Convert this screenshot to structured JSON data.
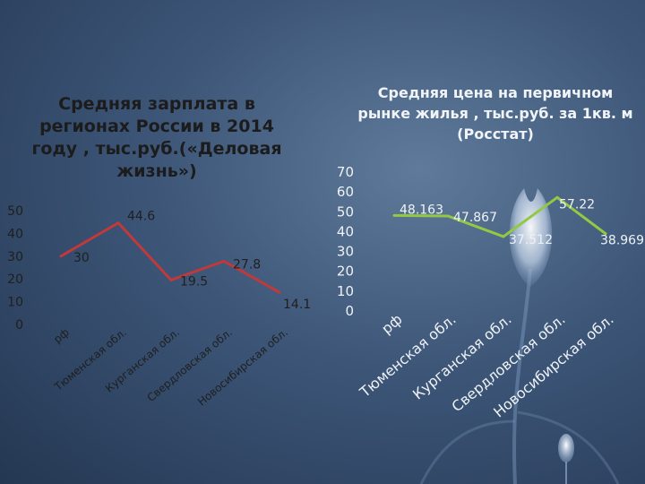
{
  "colors": {
    "left_line": "#c0393b",
    "right_line": "#93c842",
    "axis_text_left": "#1f1f1f",
    "axis_text_right": "#eef2f6"
  },
  "chart_data": [
    {
      "type": "line",
      "title": "Средняя зарплата в регионах России в 2014 году , тыс.руб.(«Деловая жизнь»)",
      "categories": [
        "рф",
        "Тюменская обл.",
        "Курганская обл.",
        "Свердловская обл.",
        "Новосибирская обл."
      ],
      "values": [
        30,
        44.6,
        19.5,
        27.8,
        14.1
      ],
      "data_labels": [
        "30",
        "44.6",
        "19.5",
        "27.8",
        "14.1"
      ],
      "y_ticks": [
        "0",
        "10",
        "20",
        "30",
        "40",
        "50"
      ],
      "ylim": [
        0,
        50
      ],
      "grid": false,
      "legend": "none"
    },
    {
      "type": "line",
      "title": "Средняя цена на первичном рынке жилья , тыс.руб. за 1кв. м (Росстат)",
      "categories": [
        "рф",
        "Тюменская обл.",
        "Курганская обл.",
        "Свердловская обл.",
        "Новосибирская обл."
      ],
      "values": [
        48.163,
        47.867,
        37.512,
        57.22,
        38.969
      ],
      "data_labels": [
        "48.163",
        "47.867",
        "37.512",
        "57.22",
        "38.969"
      ],
      "y_ticks": [
        "0",
        "10",
        "20",
        "30",
        "40",
        "50",
        "60",
        "70"
      ],
      "ylim": [
        0,
        70
      ],
      "grid": false,
      "legend": "none"
    }
  ]
}
